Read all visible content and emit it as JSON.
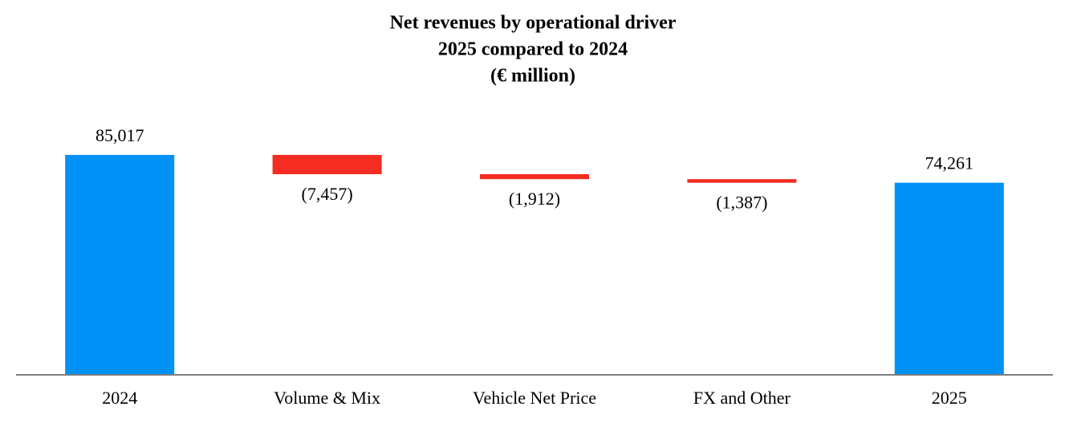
{
  "chart_data": {
    "type": "waterfall",
    "title": "Net revenues by operational driver",
    "subtitle": "2025 compared to 2024",
    "unit_label": "(€ million)",
    "categories": [
      "2024",
      "Volume & Mix",
      "Vehicle Net Price",
      "FX and Other",
      "2025"
    ],
    "values": [
      85017,
      -7457,
      -1912,
      -1387,
      74261
    ],
    "value_labels": [
      "85,017",
      "(7,457)",
      "(1,912)",
      "(1,387)",
      "74,261"
    ],
    "measures": [
      "absolute",
      "relative",
      "relative",
      "relative",
      "total"
    ],
    "total_color": "#0091f7",
    "decrease_color": "#f42c22",
    "increase_color": "#3aa84a"
  }
}
